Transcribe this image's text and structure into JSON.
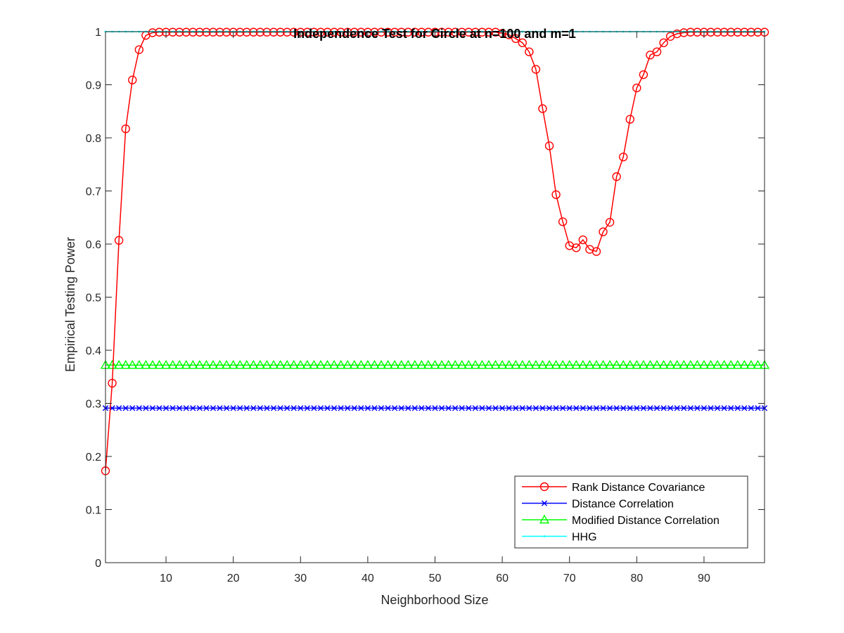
{
  "chart_data": {
    "type": "line",
    "title": "Independence Test for Circle at n=100 and m=1",
    "xlabel": "Neighborhood Size",
    "ylabel": "Empirical Testing Power",
    "xlim": [
      1,
      99
    ],
    "ylim": [
      0,
      1
    ],
    "xticks": [
      "10",
      "20",
      "30",
      "40",
      "50",
      "60",
      "70",
      "80",
      "90"
    ],
    "yticks": [
      "0",
      "0.1",
      "0.2",
      "0.3",
      "0.4",
      "0.5",
      "0.6",
      "0.7",
      "0.8",
      "0.9",
      "1"
    ],
    "grid": false,
    "legend_position": "bottom-right",
    "series": [
      {
        "name": "Rank Distance Covariance",
        "color": "#ff0000",
        "marker": "circle",
        "x": [
          1,
          2,
          3,
          4,
          5,
          6,
          7,
          8,
          9,
          10,
          11,
          12,
          13,
          14,
          15,
          16,
          17,
          18,
          19,
          20,
          21,
          22,
          23,
          24,
          25,
          26,
          27,
          28,
          29,
          30,
          31,
          32,
          33,
          34,
          35,
          36,
          37,
          38,
          39,
          40,
          41,
          42,
          43,
          44,
          45,
          46,
          47,
          48,
          49,
          50,
          51,
          52,
          53,
          54,
          55,
          56,
          57,
          58,
          59,
          60,
          61,
          62,
          63,
          64,
          65,
          66,
          67,
          68,
          69,
          70,
          71,
          72,
          73,
          74,
          75,
          76,
          77,
          78,
          79,
          80,
          81,
          82,
          83,
          84,
          85,
          86,
          87,
          88,
          89,
          90,
          91,
          92,
          93,
          94,
          95,
          96,
          97,
          98,
          99
        ],
        "values": [
          0.173,
          0.338,
          0.607,
          0.817,
          0.909,
          0.966,
          0.993,
          0.998,
          0.999,
          0.999,
          0.999,
          0.999,
          0.999,
          0.999,
          0.999,
          0.999,
          0.999,
          0.999,
          0.999,
          0.999,
          0.999,
          0.999,
          0.999,
          0.999,
          0.999,
          0.999,
          0.999,
          0.999,
          0.999,
          0.999,
          0.999,
          0.999,
          0.999,
          0.999,
          0.999,
          0.999,
          0.999,
          0.999,
          0.999,
          0.999,
          0.999,
          0.999,
          0.999,
          0.999,
          0.999,
          0.999,
          0.999,
          0.999,
          0.999,
          0.999,
          0.999,
          0.999,
          0.999,
          0.999,
          0.999,
          0.999,
          0.999,
          0.999,
          0.999,
          0.997,
          0.994,
          0.987,
          0.979,
          0.962,
          0.929,
          0.855,
          0.785,
          0.693,
          0.642,
          0.597,
          0.593,
          0.608,
          0.59,
          0.586,
          0.623,
          0.641,
          0.727,
          0.764,
          0.835,
          0.894,
          0.919,
          0.956,
          0.962,
          0.979,
          0.991,
          0.996,
          0.998,
          0.999,
          0.999,
          0.999,
          0.999,
          0.999,
          0.999,
          0.999,
          0.999,
          0.999,
          0.999,
          0.999,
          0.999
        ]
      },
      {
        "name": "Distance Correlation",
        "color": "#0000ff",
        "marker": "x",
        "x": [
          1,
          99
        ],
        "values": [
          0.291,
          0.291
        ],
        "constant": 0.291
      },
      {
        "name": "Modified Distance Correlation",
        "color": "#00ff00",
        "marker": "triangle",
        "x": [
          1,
          99
        ],
        "values": [
          0.372,
          0.372
        ],
        "constant": 0.372
      },
      {
        "name": "HHG",
        "color": "#00ffff",
        "marker": "dot",
        "x": [
          1,
          99
        ],
        "values": [
          1.0,
          1.0
        ],
        "constant": 1.0
      }
    ]
  }
}
